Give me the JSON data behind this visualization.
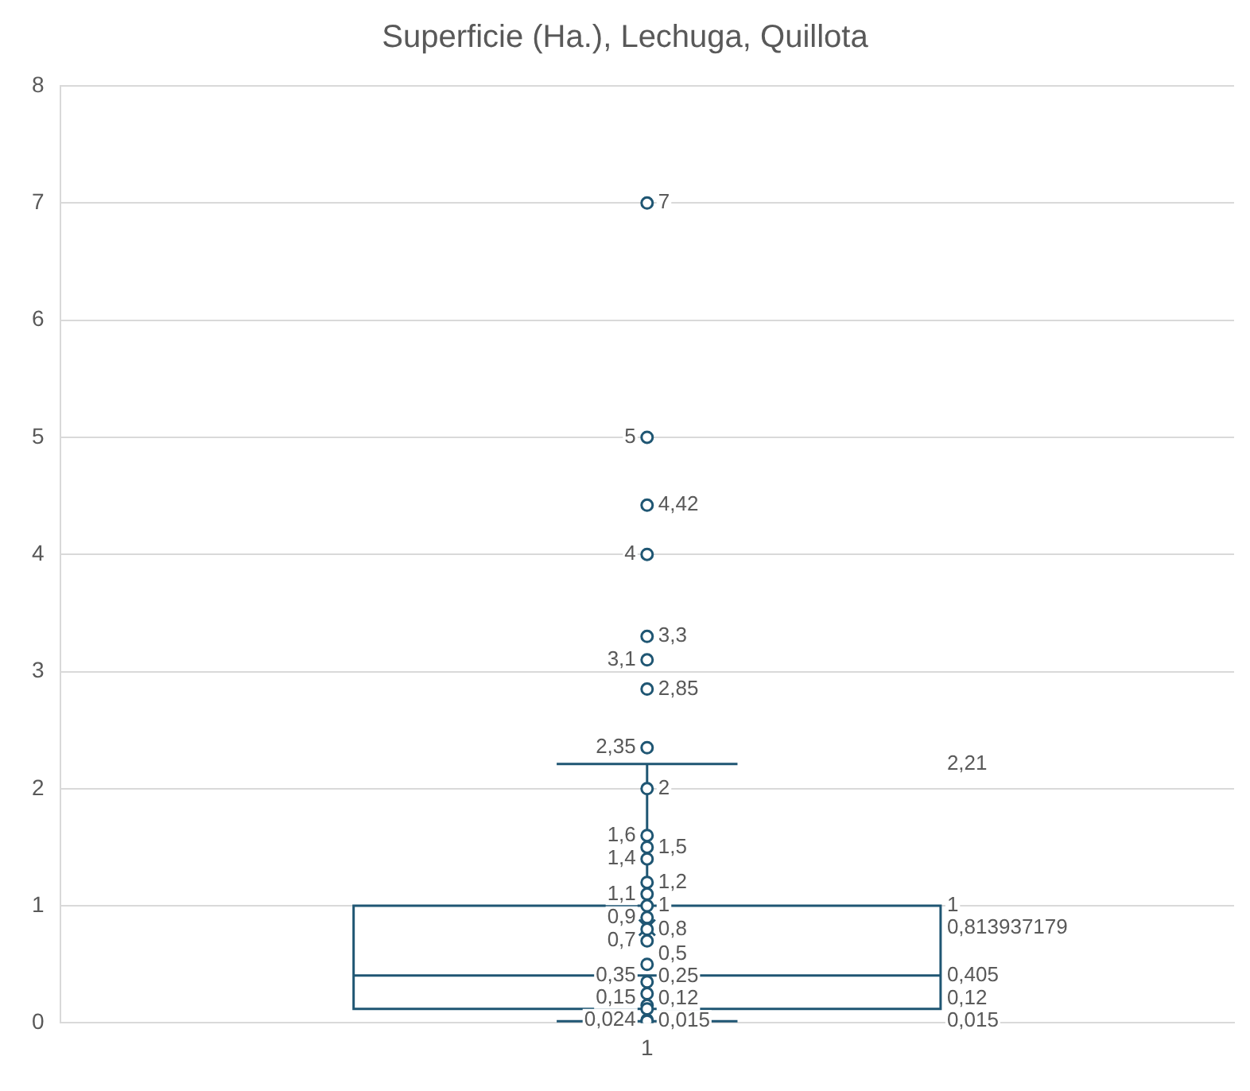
{
  "chart_data": {
    "type": "box",
    "title": "Superficie (Ha.), Lechuga, Quillota",
    "categories": [
      "1"
    ],
    "boxes": [
      {
        "low": 0.015,
        "q1": 0.12,
        "median": 0.405,
        "q3": 1,
        "high": 2.21,
        "mean": 0.813937179
      }
    ],
    "color": "#1f5673",
    "series": [
      {
        "type": "scatter",
        "color": "#1f5673",
        "x": [
          "1",
          "1",
          "1",
          "1",
          "1",
          "1",
          "1",
          "1"
        ],
        "values": [
          7,
          5,
          4.42,
          4,
          3.3,
          3.1,
          2.85,
          2.35
        ],
        "value_labels": [
          "7",
          "5",
          "4,42",
          "4",
          "3,3",
          "3,1",
          "2,85",
          "2,35"
        ]
      },
      {
        "type": "scatter",
        "color": "#1f5673",
        "x": [
          "1",
          "1",
          "1",
          "1",
          "1",
          "1",
          "1",
          "1",
          "1",
          "1",
          "1",
          "1",
          "1",
          "1",
          "1",
          "1",
          "1"
        ],
        "values": [
          2,
          1.6,
          1.5,
          1.4,
          1.2,
          1.1,
          1,
          0.9,
          0.8,
          0.7,
          0.5,
          0.35,
          0.25,
          0.15,
          0.12,
          0.024,
          0.015
        ],
        "value_labels": [
          "2",
          "1,6",
          "1,5",
          "1,4",
          "1,2",
          "1,1",
          "1",
          "0,9",
          "0,8",
          "0,7",
          "0,5",
          "0,35",
          "0,25",
          "0,15",
          "0,12",
          "0,024",
          "0,015"
        ]
      }
    ],
    "annotations": [
      "2,21",
      "1",
      "0,813937179",
      "0,405",
      "0,12",
      "0,015"
    ],
    "ylim": [
      0,
      8
    ],
    "yticks": [
      0,
      1,
      2,
      3,
      4,
      5,
      6,
      7,
      8
    ],
    "grid": "y",
    "legend": false,
    "marker": "circle"
  }
}
